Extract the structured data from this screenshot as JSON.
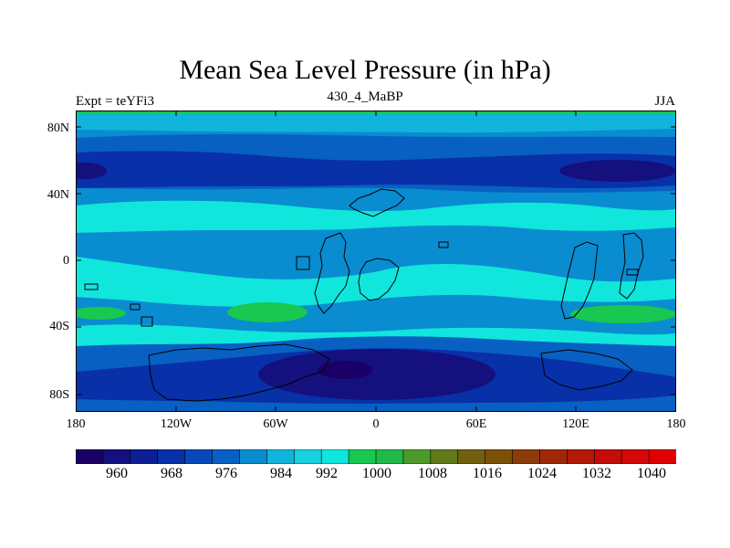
{
  "title": "Mean Sea Level Pressure (in hPa)",
  "left_label": "Expt = teYFi3",
  "center_label": "430_4_MaBP",
  "right_label": "JJA",
  "lat_ticks": [
    "80N",
    "40N",
    "0",
    "40S",
    "80S"
  ],
  "lon_ticks": [
    "180",
    "120W",
    "60W",
    "0",
    "60E",
    "120E",
    "180"
  ],
  "colorbar": {
    "labels": [
      "960",
      "968",
      "976",
      "984",
      "992",
      "1000",
      "1008",
      "1016",
      "1024",
      "1032",
      "1040"
    ],
    "colors": [
      "#1a0066",
      "#14107e",
      "#0c1f94",
      "#0830a8",
      "#0848b8",
      "#0860c2",
      "#0a8cd0",
      "#10b4dc",
      "#18d2e0",
      "#10e6dc",
      "#18c850",
      "#20b848",
      "#4c9a28",
      "#607a1a",
      "#706010",
      "#7c5008",
      "#8c3c08",
      "#a02808",
      "#b41808",
      "#c40c08",
      "#d40808",
      "#e00000"
    ]
  },
  "field_colors": {
    "deep": "#14107e",
    "dark": "#0830a8",
    "mid": "#0860c2",
    "blue": "#0a8cd0",
    "light": "#10b4dc",
    "cyan": "#10e6dc",
    "green": "#18c850"
  }
}
